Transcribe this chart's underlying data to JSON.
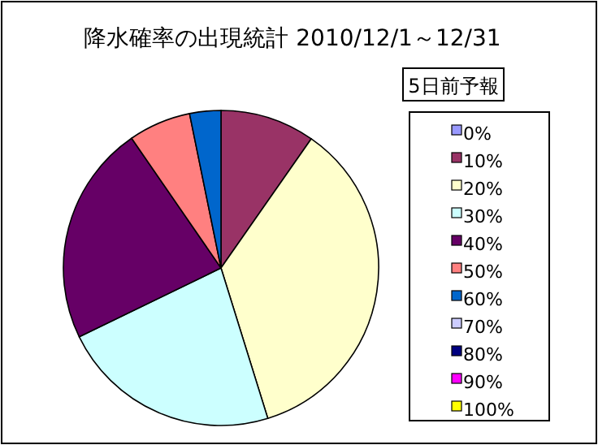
{
  "chart_data": {
    "type": "pie",
    "title": "降水確率の出現統計 2010/12/1～12/31",
    "legend_title": "5日前予報",
    "categories": [
      "0%",
      "10%",
      "20%",
      "30%",
      "40%",
      "50%",
      "60%",
      "70%",
      "80%",
      "90%",
      "100%"
    ],
    "values": [
      0,
      9.7,
      35.5,
      22.6,
      22.6,
      6.4,
      3.2,
      0,
      0,
      0,
      0
    ],
    "colors": [
      "#9999ff",
      "#993366",
      "#ffffcc",
      "#ccffff",
      "#660066",
      "#ff8080",
      "#0066cc",
      "#ccccff",
      "#000080",
      "#ff00ff",
      "#ffff00"
    ],
    "legend": "right"
  }
}
